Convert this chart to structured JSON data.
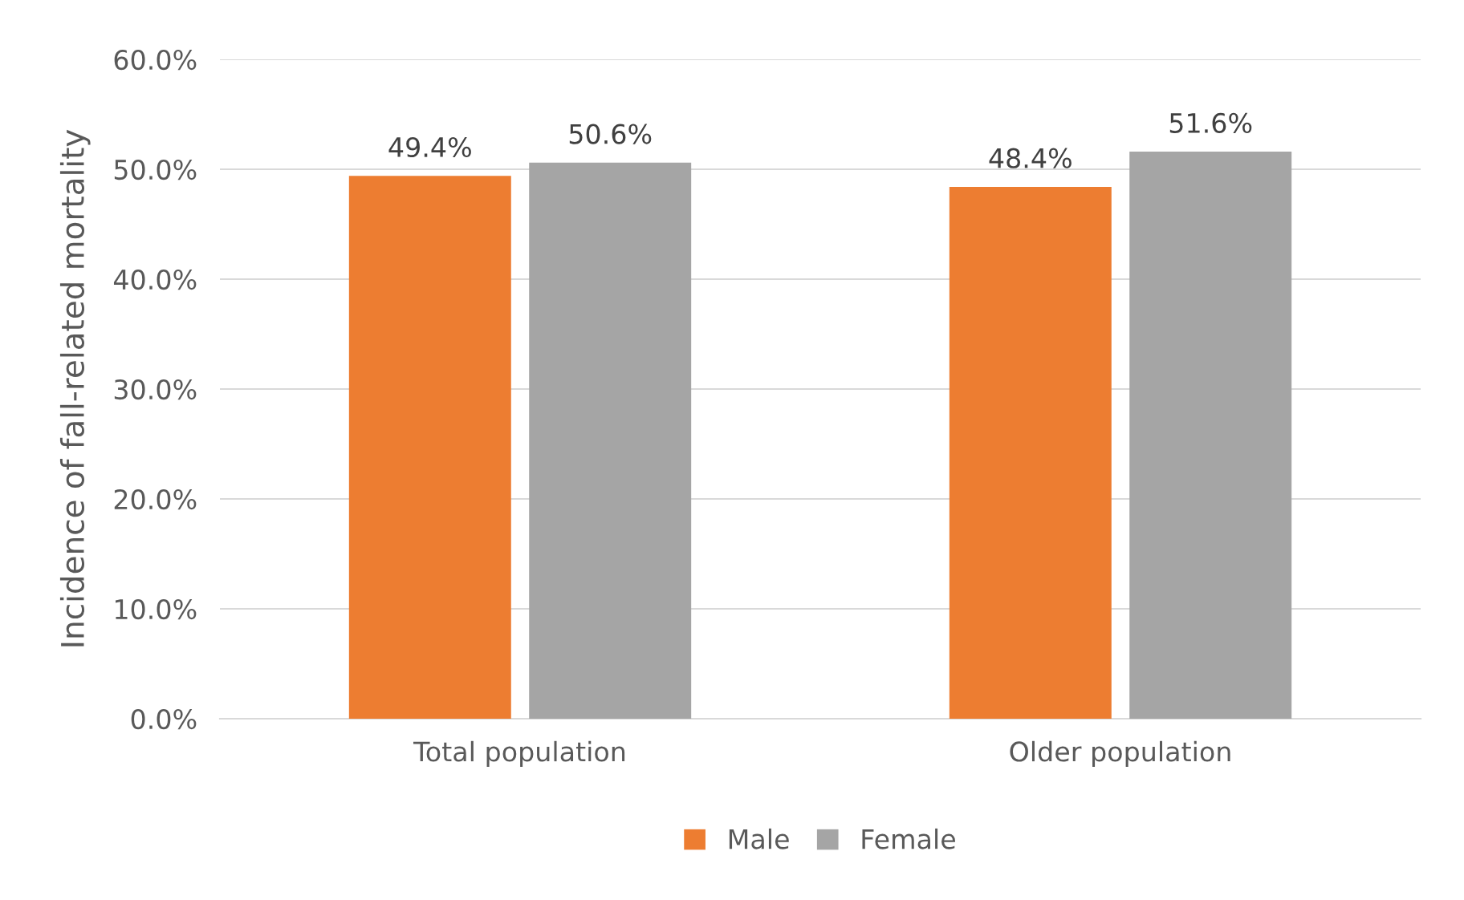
{
  "chart_data": {
    "type": "bar",
    "ylabel": "Incidence of fall-related mortality",
    "categories": [
      "Total population",
      "Older population"
    ],
    "series": [
      {
        "name": "Male",
        "color": "#ed7d31",
        "values": [
          49.4,
          48.4
        ],
        "value_labels": [
          "49.4%",
          "48.4%"
        ]
      },
      {
        "name": "Female",
        "color": "#a5a5a5",
        "values": [
          50.6,
          51.6
        ],
        "value_labels": [
          "50.6%",
          "51.6%"
        ]
      }
    ],
    "ylim": [
      0,
      60
    ],
    "yticks": [
      {
        "value": 0,
        "label": "0.0%"
      },
      {
        "value": 10,
        "label": "10.0%"
      },
      {
        "value": 20,
        "label": "20.0%"
      },
      {
        "value": 30,
        "label": "30.0%"
      },
      {
        "value": 40,
        "label": "40.0%"
      },
      {
        "value": 50,
        "label": "50.0%"
      },
      {
        "value": 60,
        "label": "60.0%"
      }
    ],
    "grid": "y",
    "legend": "bottom"
  }
}
